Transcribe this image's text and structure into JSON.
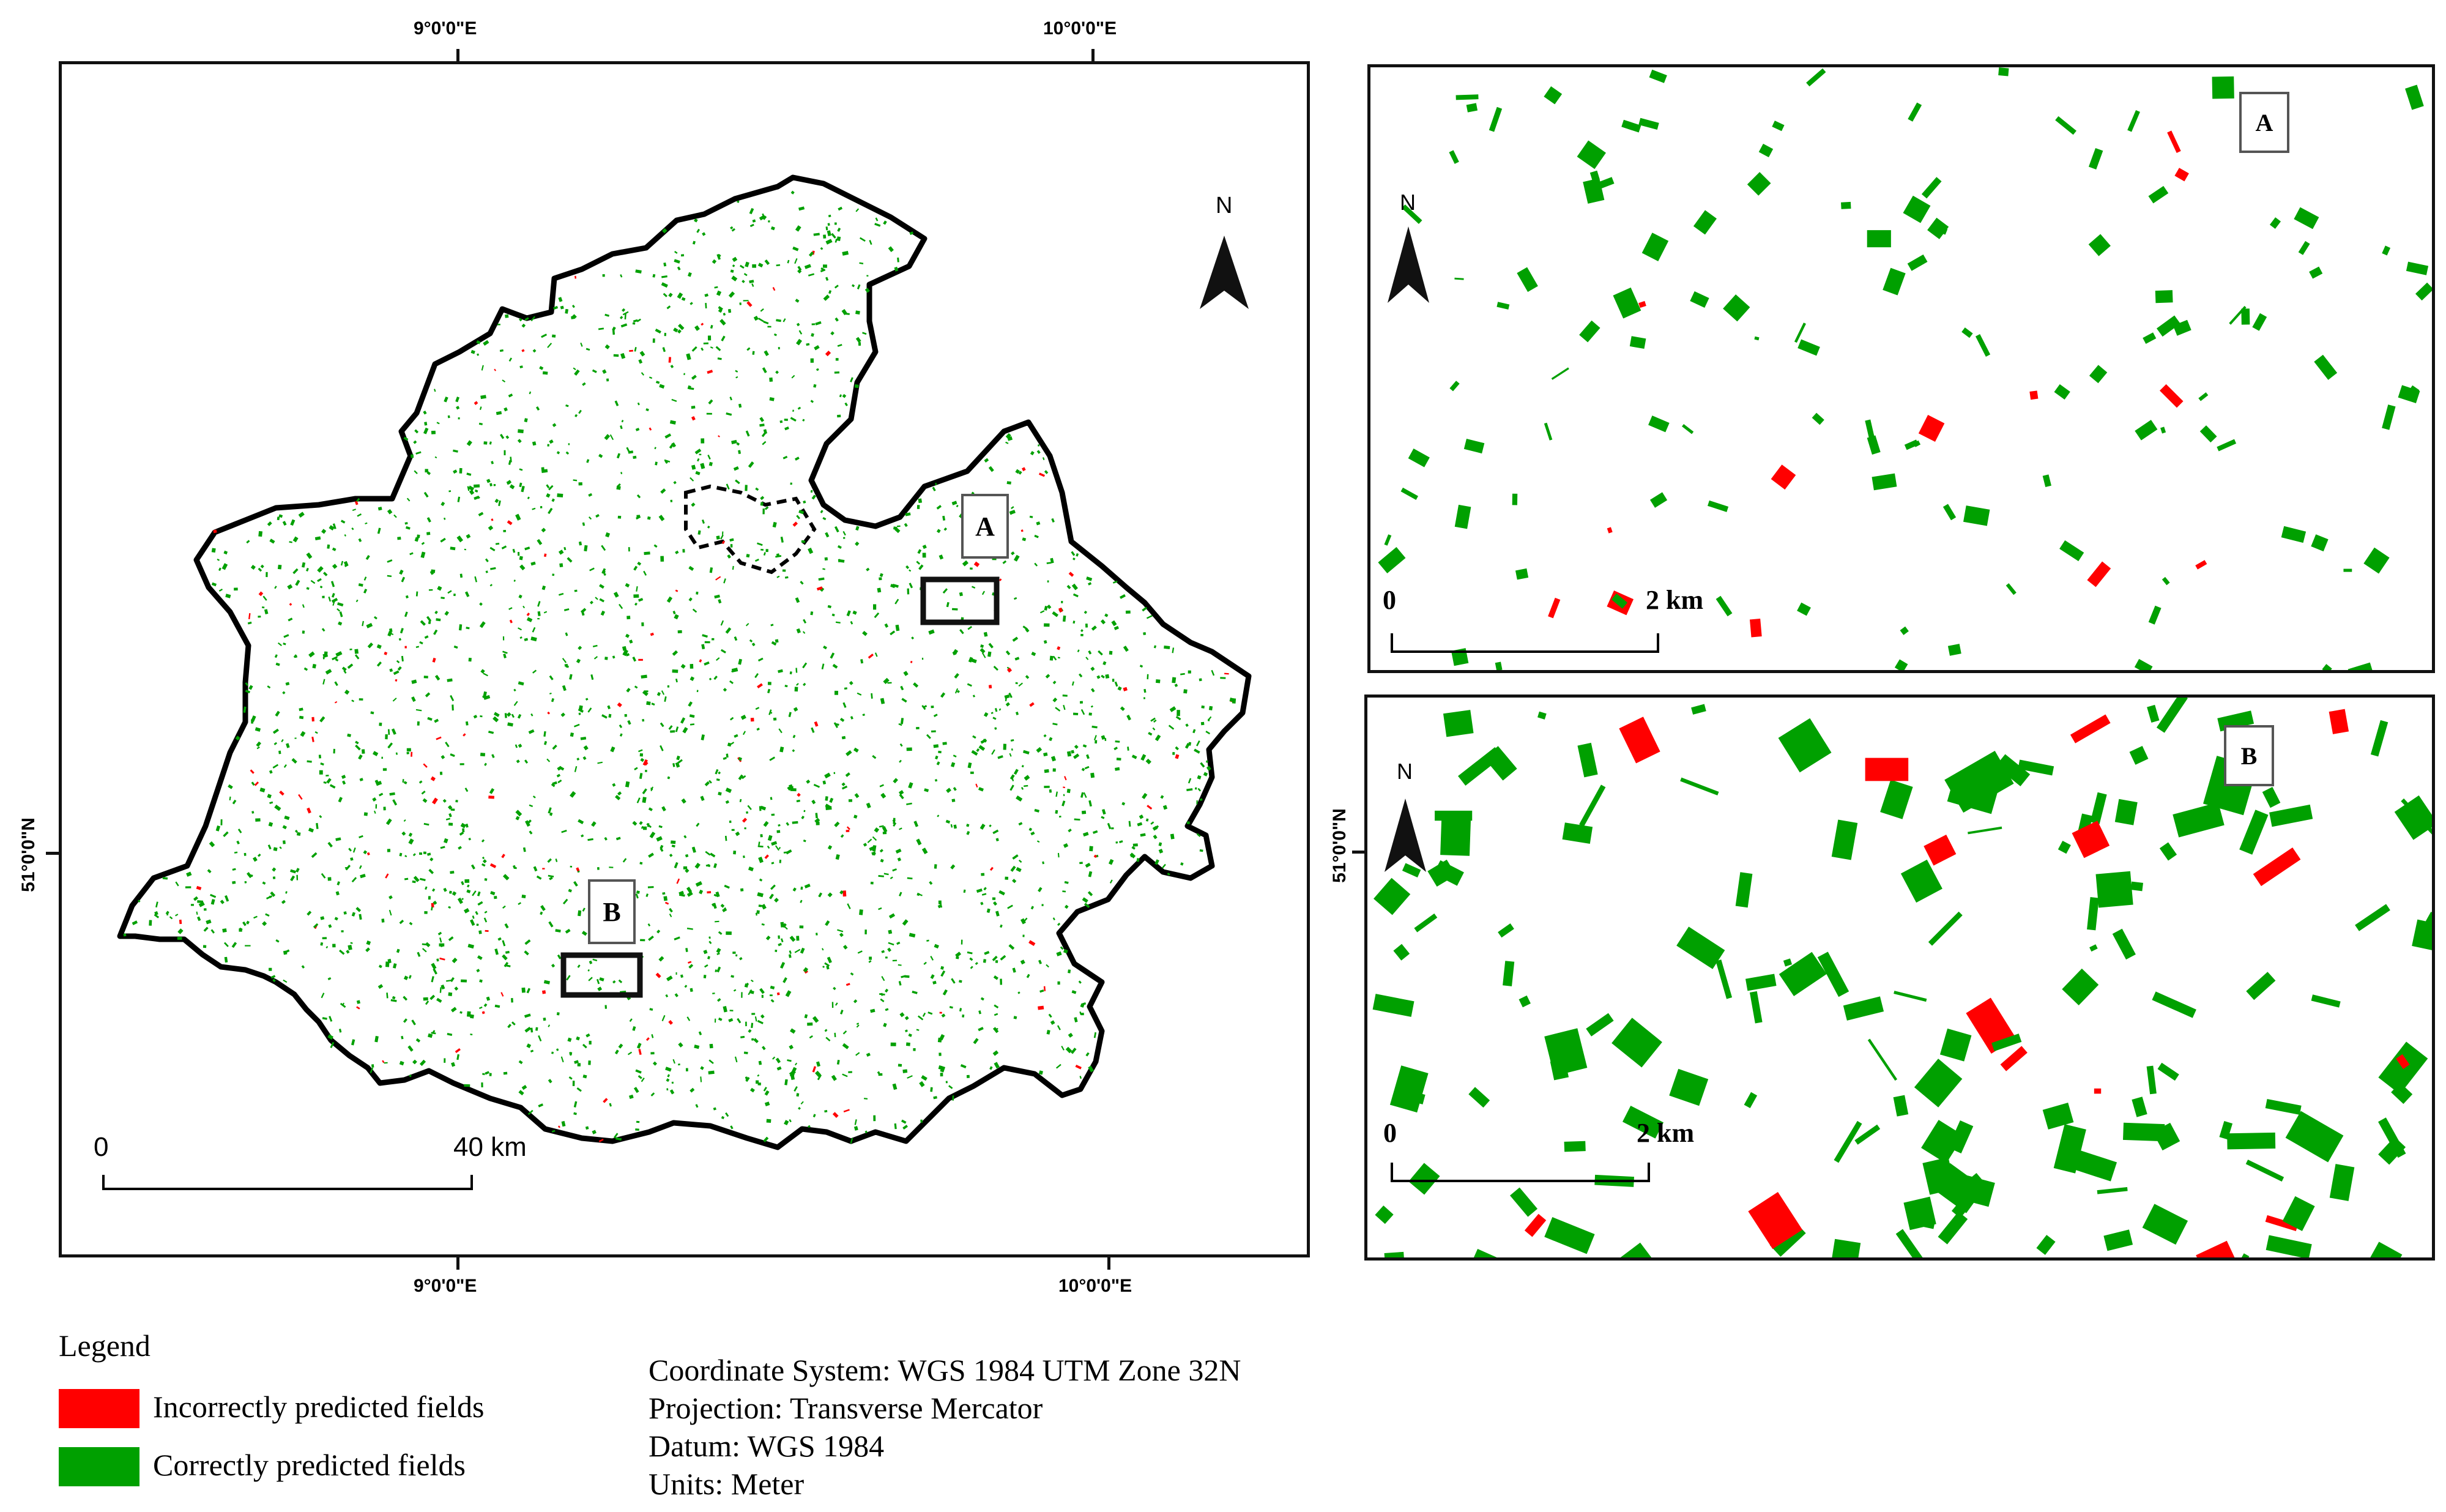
{
  "main_map": {
    "top_ticks": [
      "9°0'0\"E",
      "10°0'0\"E"
    ],
    "bottom_ticks": [
      "9°0'0\"E",
      "10°0'0\"E"
    ],
    "left_tick": "51°0'0\"N",
    "north_label": "N",
    "scale_start": "0",
    "scale_end": "40 km",
    "box_a_label": "A",
    "box_b_label": "B"
  },
  "inset_a": {
    "label": "A",
    "north_label": "N",
    "scale_start": "0",
    "scale_end": "2 km"
  },
  "inset_b": {
    "label": "B",
    "north_label": "N",
    "scale_start": "0",
    "scale_end": "2 km",
    "right_tick": "51°0'0\"N"
  },
  "legend": {
    "title": "Legend",
    "items": [
      {
        "label": "Incorrectly predicted fields",
        "color": "#ff0000"
      },
      {
        "label": "Correctly predicted fields",
        "color": "#00a000"
      }
    ]
  },
  "info": {
    "coordinate_system": "Coordinate System: WGS 1984 UTM Zone 32N",
    "projection": "Projection: Transverse Mercator",
    "datum": "Datum: WGS 1984",
    "units": "Units: Meter"
  },
  "colors": {
    "correct": "#00a000",
    "incorrect": "#ff0000",
    "outline": "#000000"
  }
}
